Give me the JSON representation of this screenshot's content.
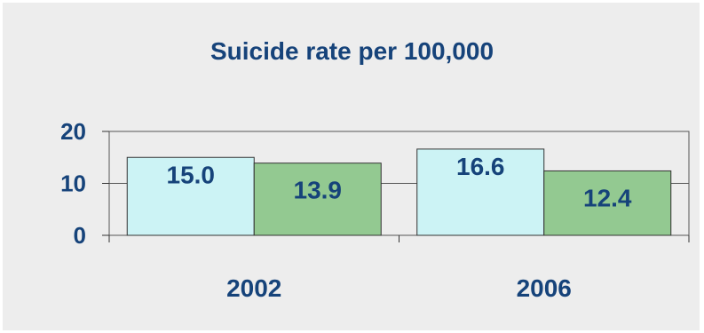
{
  "chart_data": {
    "type": "bar",
    "title": "Suicide rate per 100,000",
    "categories": [
      "2002",
      "2006"
    ],
    "series": [
      {
        "values": [
          15.0,
          16.6
        ]
      },
      {
        "values": [
          13.9,
          12.4
        ]
      }
    ],
    "value_labels": [
      [
        "15.0",
        "16.6"
      ],
      [
        "13.9",
        "12.4"
      ]
    ],
    "ylim": [
      0,
      20
    ],
    "yticks": [
      0,
      10,
      20
    ],
    "grid": true,
    "legend": "none",
    "colors": {
      "series": [
        "#ccf3f5",
        "#93c991"
      ],
      "text": "#16437a",
      "bar_border": "#333333",
      "background": "#ededed"
    }
  }
}
